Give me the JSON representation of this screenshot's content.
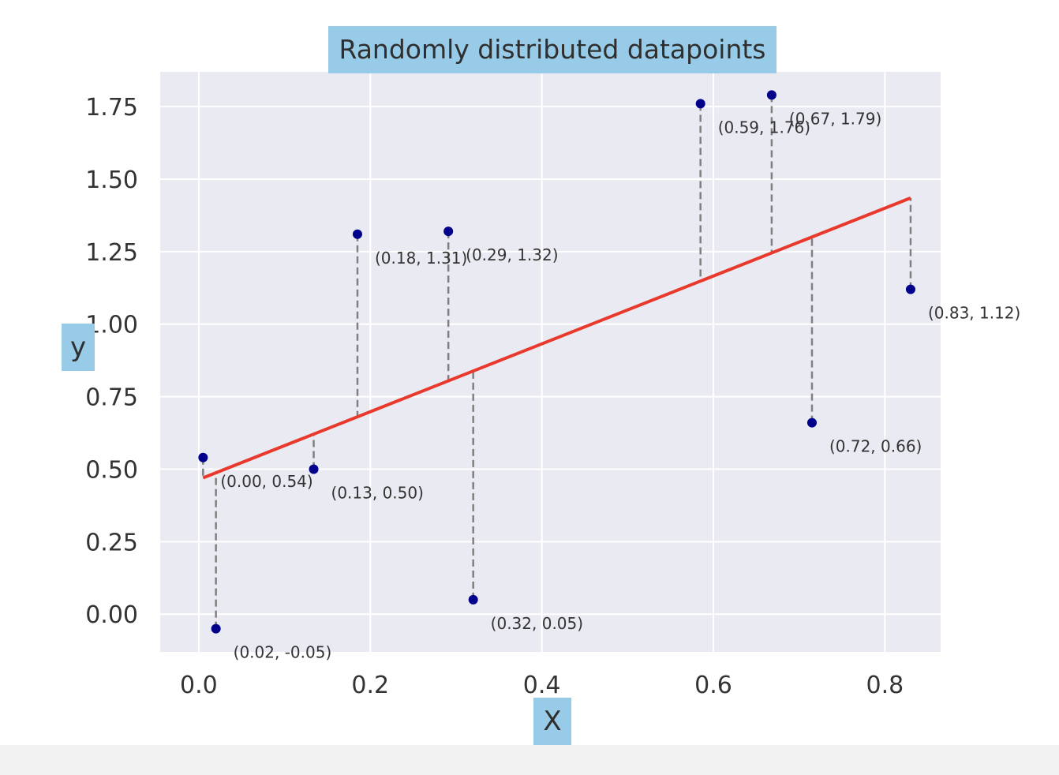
{
  "chart_data": {
    "type": "scatter",
    "title": "Randomly distributed datapoints",
    "xlabel": "X",
    "ylabel": "y",
    "xlim": [
      -0.045,
      0.865
    ],
    "ylim": [
      -0.13,
      1.87
    ],
    "xticks": [
      0.0,
      0.2,
      0.4,
      0.6,
      0.8
    ],
    "xtick_labels": [
      "0.0",
      "0.2",
      "0.4",
      "0.6",
      "0.8"
    ],
    "yticks": [
      0.0,
      0.25,
      0.5,
      0.75,
      1.0,
      1.25,
      1.5,
      1.75
    ],
    "ytick_labels": [
      "0.00",
      "0.25",
      "0.50",
      "0.75",
      "1.00",
      "1.25",
      "1.50",
      "1.75"
    ],
    "grid": true,
    "points": [
      {
        "x": 0.005,
        "y": 0.54,
        "label": "(0.00, 0.54)"
      },
      {
        "x": 0.02,
        "y": -0.05,
        "label": "(0.02, -0.05)"
      },
      {
        "x": 0.134,
        "y": 0.5,
        "label": "(0.13, 0.50)"
      },
      {
        "x": 0.185,
        "y": 1.31,
        "label": "(0.18, 1.31)"
      },
      {
        "x": 0.291,
        "y": 1.32,
        "label": "(0.29, 1.32)"
      },
      {
        "x": 0.32,
        "y": 0.05,
        "label": "(0.32, 0.05)"
      },
      {
        "x": 0.585,
        "y": 1.76,
        "label": "(0.59, 1.76)"
      },
      {
        "x": 0.668,
        "y": 1.79,
        "label": "(0.67, 1.79)"
      },
      {
        "x": 0.715,
        "y": 0.66,
        "label": "(0.72, 0.66)"
      },
      {
        "x": 0.83,
        "y": 1.12,
        "label": "(0.83, 1.12)"
      }
    ],
    "fit_line": {
      "x": [
        0.005,
        0.83
      ],
      "y": [
        0.47,
        1.435
      ]
    },
    "residuals": "dashed vertical lines from each point to the fit line",
    "colors": {
      "background": "#eaeaf2",
      "grid": "#ffffff",
      "points": "#00008b",
      "fit_line": "#e8392c",
      "residual": "#808080",
      "label_box": "#97cbe8"
    }
  }
}
